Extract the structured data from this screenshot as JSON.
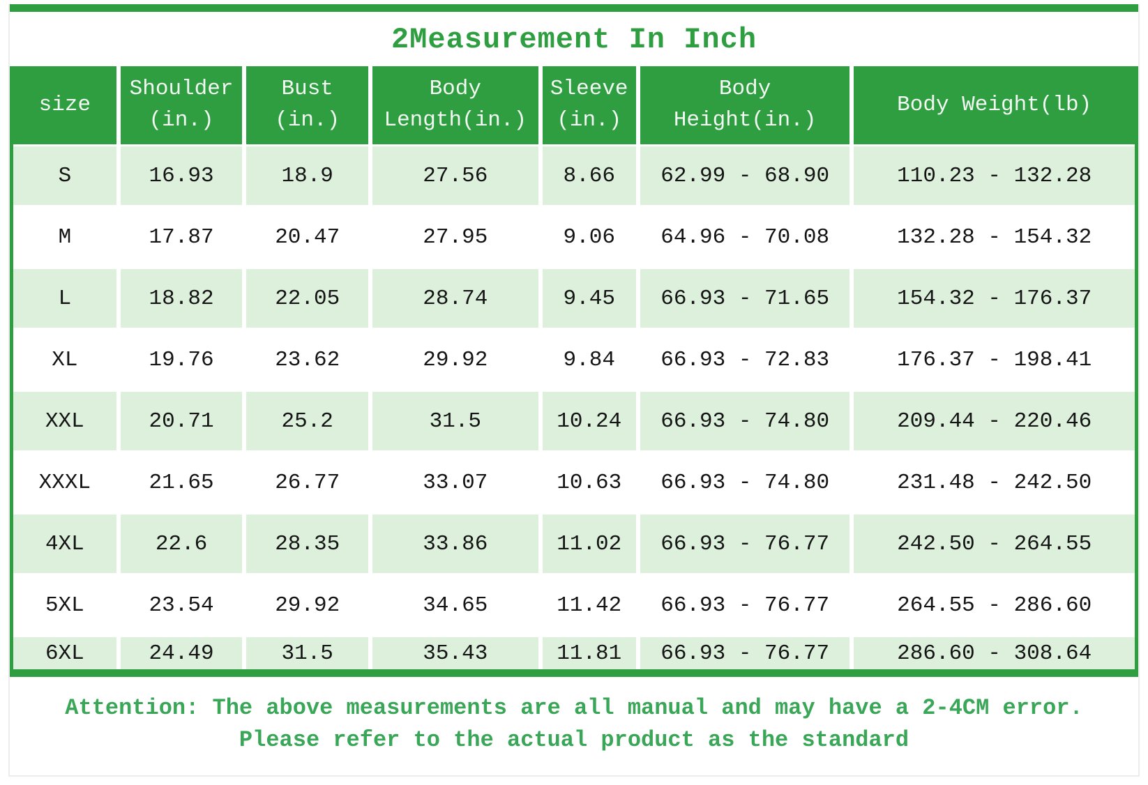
{
  "title": "2Measurement In Inch",
  "colors": {
    "green": "#2f9e41",
    "row_light_green": "#dcf0dc",
    "attention_green": "#3aa657"
  },
  "table": {
    "header_lines": [
      [
        "size"
      ],
      [
        "Shoulder",
        "(in.)"
      ],
      [
        "Bust",
        "(in.)"
      ],
      [
        "Body",
        "Length(in.)"
      ],
      [
        "Sleeve",
        "(in.)"
      ],
      [
        "Body",
        "Height(in.)"
      ],
      [
        "Body Weight(lb)"
      ]
    ],
    "column_widths_pct": [
      9.5,
      11.2,
      11.2,
      15.1,
      8.7,
      19.0,
      25.3
    ]
  },
  "attention": {
    "line1": "Attention: The above measurements are all manual and may have a 2-4CM error.",
    "line2": "Please refer to the actual product as the standard"
  },
  "chart_data": {
    "type": "table",
    "title": "2Measurement In Inch",
    "columns": [
      "size",
      "Shoulder (in.)",
      "Bust (in.)",
      "Body Length(in.)",
      "Sleeve (in.)",
      "Body Height(in.)",
      "Body Weight(lb)"
    ],
    "rows": [
      [
        "S",
        "16.93",
        "18.9",
        "27.56",
        "8.66",
        "62.99 - 68.90",
        "110.23 - 132.28"
      ],
      [
        "M",
        "17.87",
        "20.47",
        "27.95",
        "9.06",
        "64.96 - 70.08",
        "132.28 - 154.32"
      ],
      [
        "L",
        "18.82",
        "22.05",
        "28.74",
        "9.45",
        "66.93 - 71.65",
        "154.32 - 176.37"
      ],
      [
        "XL",
        "19.76",
        "23.62",
        "29.92",
        "9.84",
        "66.93 - 72.83",
        "176.37 - 198.41"
      ],
      [
        "XXL",
        "20.71",
        "25.2",
        "31.5",
        "10.24",
        "66.93 - 74.80",
        "209.44 - 220.46"
      ],
      [
        "XXXL",
        "21.65",
        "26.77",
        "33.07",
        "10.63",
        "66.93 - 74.80",
        "231.48 - 242.50"
      ],
      [
        "4XL",
        "22.6",
        "28.35",
        "33.86",
        "11.02",
        "66.93 - 76.77",
        "242.50 - 264.55"
      ],
      [
        "5XL",
        "23.54",
        "29.92",
        "34.65",
        "11.42",
        "66.93 - 76.77",
        "264.55 - 286.60"
      ],
      [
        "6XL",
        "24.49",
        "31.5",
        "35.43",
        "11.81",
        "66.93 - 76.77",
        "286.60 - 308.64"
      ]
    ]
  }
}
